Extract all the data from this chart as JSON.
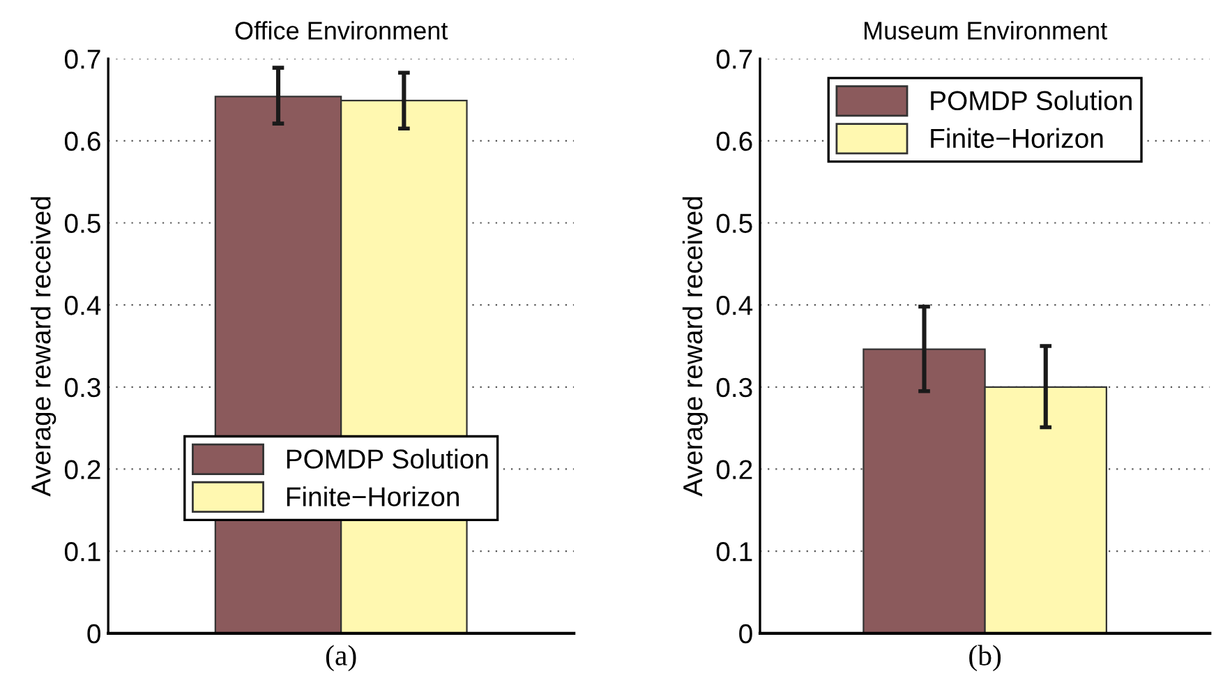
{
  "chart_data": [
    {
      "type": "bar",
      "title": "Office Environment",
      "xlabel": "(a)",
      "ylabel": "Average reward received",
      "categories": [
        null
      ],
      "series": [
        {
          "name": "POMDP Solution",
          "color": "#8b5a5c",
          "values": [
            0.654
          ],
          "errors": [
            [
              0.621,
              0.689
            ]
          ]
        },
        {
          "name": "Finite−Horizon",
          "color": "#fff8b0",
          "values": [
            0.649
          ],
          "errors": [
            [
              0.615,
              0.683
            ]
          ]
        }
      ],
      "ylim": [
        0,
        0.7
      ],
      "yticks": [
        0,
        0.1,
        0.2,
        0.3,
        0.4,
        0.5,
        0.6,
        0.7
      ],
      "grid": "y",
      "legend": "bottom",
      "tick_labels": "y"
    },
    {
      "type": "bar",
      "title": "Museum Environment",
      "xlabel": "(b)",
      "ylabel": "Average reward received",
      "categories": [
        null
      ],
      "series": [
        {
          "name": "POMDP Solution",
          "color": "#8b5a5c",
          "values": [
            0.346
          ],
          "errors": [
            [
              0.295,
              0.398
            ]
          ]
        },
        {
          "name": "Finite−Horizon",
          "color": "#fff8b0",
          "values": [
            0.3
          ],
          "errors": [
            [
              0.251,
              0.35
            ]
          ]
        }
      ],
      "ylim": [
        0,
        0.7
      ],
      "yticks": [
        0,
        0.1,
        0.2,
        0.3,
        0.4,
        0.5,
        0.6,
        0.7
      ],
      "grid": "y",
      "legend": "top",
      "tick_labels": "y"
    }
  ]
}
